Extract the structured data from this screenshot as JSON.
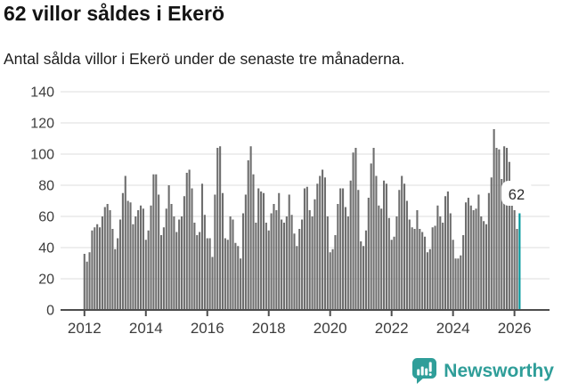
{
  "header": {
    "title": "62 villor såldes i Ekerö",
    "subtitle": "Antal sålda villor i Ekerö under de senaste tre månaderna."
  },
  "branding": {
    "wordmark": "Newsworthy",
    "color": "#2f9e99",
    "icon": "bar-chart-speech-bubble"
  },
  "chart_data": {
    "type": "bar",
    "title": "62 villor såldes i Ekerö",
    "subtitle": "Antal sålda villor i Ekerö under de senaste tre månaderna.",
    "xlabel": "",
    "ylabel": "",
    "ylim": [
      0,
      140
    ],
    "yticks": [
      0,
      20,
      40,
      60,
      80,
      100,
      120,
      140
    ],
    "xticks": [
      "2012",
      "2014",
      "2016",
      "2018",
      "2020",
      "2022",
      "2024",
      "2026"
    ],
    "grid": true,
    "legend": "none",
    "bar_color": "#6e6e6e",
    "grid_color": "#e3e3e3",
    "axis_color": "#4d4d4d",
    "tick_color": "#3c3c3c",
    "x": [
      "2012-01",
      "2012-02",
      "2012-03",
      "2012-04",
      "2012-05",
      "2012-06",
      "2012-07",
      "2012-08",
      "2012-09",
      "2012-10",
      "2012-11",
      "2012-12",
      "2013-01",
      "2013-02",
      "2013-03",
      "2013-04",
      "2013-05",
      "2013-06",
      "2013-07",
      "2013-08",
      "2013-09",
      "2013-10",
      "2013-11",
      "2013-12",
      "2014-01",
      "2014-02",
      "2014-03",
      "2014-04",
      "2014-05",
      "2014-06",
      "2014-07",
      "2014-08",
      "2014-09",
      "2014-10",
      "2014-11",
      "2014-12",
      "2015-01",
      "2015-02",
      "2015-03",
      "2015-04",
      "2015-05",
      "2015-06",
      "2015-07",
      "2015-08",
      "2015-09",
      "2015-10",
      "2015-11",
      "2015-12",
      "2016-01",
      "2016-02",
      "2016-03",
      "2016-04",
      "2016-05",
      "2016-06",
      "2016-07",
      "2016-08",
      "2016-09",
      "2016-10",
      "2016-11",
      "2016-12",
      "2017-01",
      "2017-02",
      "2017-03",
      "2017-04",
      "2017-05",
      "2017-06",
      "2017-07",
      "2017-08",
      "2017-09",
      "2017-10",
      "2017-11",
      "2017-12",
      "2018-01",
      "2018-02",
      "2018-03",
      "2018-04",
      "2018-05",
      "2018-06",
      "2018-07",
      "2018-08",
      "2018-09",
      "2018-10",
      "2018-11",
      "2018-12",
      "2019-01",
      "2019-02",
      "2019-03",
      "2019-04",
      "2019-05",
      "2019-06",
      "2019-07",
      "2019-08",
      "2019-09",
      "2019-10",
      "2019-11",
      "2019-12",
      "2020-01",
      "2020-02",
      "2020-03",
      "2020-04",
      "2020-05",
      "2020-06",
      "2020-07",
      "2020-08",
      "2020-09",
      "2020-10",
      "2020-11",
      "2020-12",
      "2021-01",
      "2021-02",
      "2021-03",
      "2021-04",
      "2021-05",
      "2021-06",
      "2021-07",
      "2021-08",
      "2021-09",
      "2021-10",
      "2021-11",
      "2021-12",
      "2022-01",
      "2022-02",
      "2022-03",
      "2022-04",
      "2022-05",
      "2022-06",
      "2022-07",
      "2022-08",
      "2022-09",
      "2022-10",
      "2022-11",
      "2022-12",
      "2023-01",
      "2023-02",
      "2023-03",
      "2023-04",
      "2023-05",
      "2023-06",
      "2023-07",
      "2023-08",
      "2023-09",
      "2023-10",
      "2023-11",
      "2023-12",
      "2024-01",
      "2024-02",
      "2024-03",
      "2024-04",
      "2024-05",
      "2024-06",
      "2024-07",
      "2024-08",
      "2024-09",
      "2024-10",
      "2024-11",
      "2024-12",
      "2025-01",
      "2025-02",
      "2025-03",
      "2025-04",
      "2025-05",
      "2025-06",
      "2025-07",
      "2025-08",
      "2025-09",
      "2025-10",
      "2025-11",
      "2025-12",
      "2026-01",
      "2026-02",
      "2026-03"
    ],
    "values": [
      36,
      31,
      37,
      51,
      53,
      55,
      53,
      60,
      66,
      68,
      64,
      52,
      39,
      46,
      58,
      75,
      86,
      70,
      69,
      55,
      60,
      64,
      67,
      65,
      45,
      51,
      67,
      87,
      87,
      74,
      48,
      53,
      65,
      80,
      68,
      60,
      50,
      58,
      60,
      73,
      88,
      90,
      78,
      56,
      48,
      50,
      81,
      61,
      46,
      46,
      34,
      74,
      104,
      105,
      75,
      46,
      45,
      60,
      58,
      43,
      41,
      33,
      62,
      74,
      96,
      105,
      87,
      56,
      78,
      76,
      75,
      56,
      51,
      62,
      68,
      64,
      75,
      58,
      56,
      60,
      74,
      61,
      49,
      41,
      52,
      58,
      78,
      79,
      64,
      60,
      71,
      81,
      86,
      90,
      85,
      60,
      37,
      39,
      48,
      68,
      78,
      78,
      66,
      60,
      83,
      101,
      104,
      77,
      44,
      41,
      51,
      72,
      94,
      104,
      86,
      67,
      65,
      83,
      81,
      59,
      45,
      47,
      60,
      77,
      86,
      81,
      70,
      58,
      53,
      52,
      64,
      52,
      50,
      47,
      37,
      39,
      53,
      54,
      67,
      60,
      56,
      73,
      76,
      62,
      45,
      33,
      33,
      35,
      48,
      69,
      72,
      67,
      64,
      65,
      74,
      60,
      57,
      55,
      75,
      85,
      116,
      104,
      103,
      84,
      105,
      104,
      95,
      71,
      64,
      52,
      62
    ],
    "highlight": {
      "index": 170,
      "x": "2026-03",
      "value": 62,
      "label": "62",
      "color": "#00989d",
      "label_bg": "#ffffff",
      "label_color": "#2b2b2b"
    }
  }
}
